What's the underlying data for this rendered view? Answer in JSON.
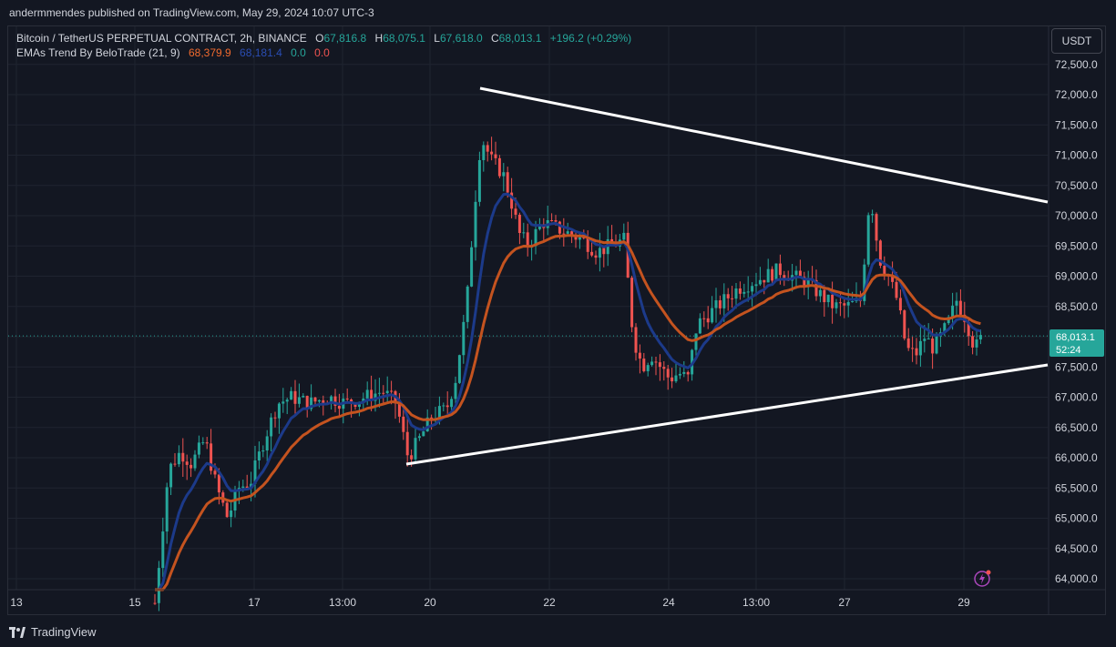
{
  "header": {
    "publisher": "andermmendes published on TradingView.com, May 29, 2024 10:07 UTC-3"
  },
  "legend": {
    "symbol": "Bitcoin / TetherUS PERPETUAL CONTRACT, 2h, BINANCE",
    "open_label": "O",
    "open": "67,816.8",
    "high_label": "H",
    "high": "68,075.1",
    "low_label": "L",
    "low": "67,618.0",
    "close_label": "C",
    "close": "68,013.1",
    "change": "+196.2 (+0.29%)",
    "indicator": "EMAs Trend By BeloTrade (21, 9)",
    "ema_slow": "68,379.9",
    "ema_fast": "68,181.4",
    "trend_up": "0.0",
    "trend_down": "0.0"
  },
  "price_axis": {
    "unit": "USDT",
    "ticks": [
      "72,500.0",
      "72,000.0",
      "71,500.0",
      "71,000.0",
      "70,500.0",
      "70,000.0",
      "69,500.0",
      "69,000.0",
      "68,500.0",
      "68,000.0",
      "67,500.0",
      "67,000.0",
      "66,500.0",
      "66,000.0",
      "65,500.0",
      "65,000.0",
      "64,500.0",
      "64,000.0"
    ],
    "current_price": "68,013.1",
    "countdown": "52:24"
  },
  "time_axis": {
    "ticks": [
      "13",
      "15",
      "17",
      "13:00",
      "20",
      "22",
      "24",
      "13:00",
      "27",
      "29"
    ]
  },
  "footer": {
    "brand": "TradingView"
  },
  "colors": {
    "up": "#26a69a",
    "down": "#ef5350",
    "ema_fast": "#1c3a8a",
    "ema_slow": "#c4531f",
    "trendline": "#ffffff",
    "background": "#131722",
    "grid": "#1f2430"
  },
  "icons": {
    "flash": "lightning-icon",
    "logo": "tradingview-logo-icon"
  }
}
